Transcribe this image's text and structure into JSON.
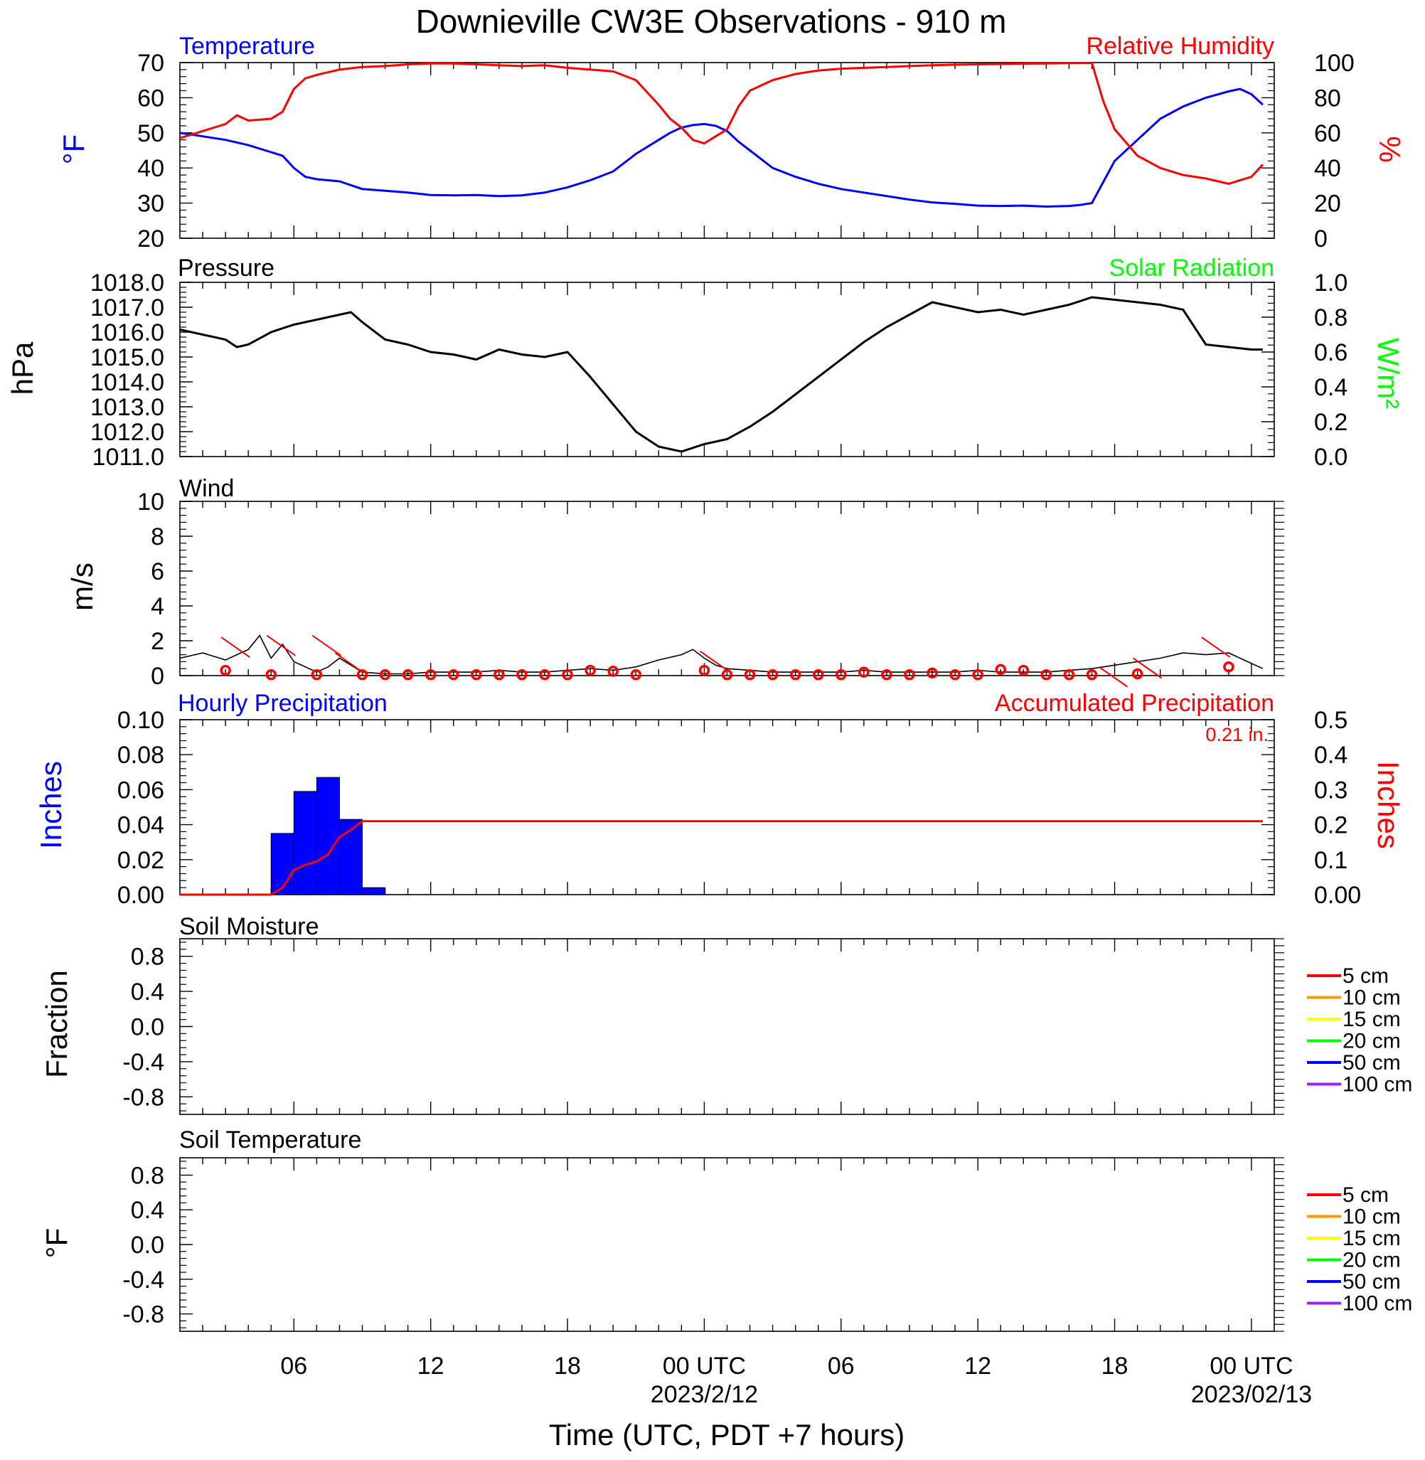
{
  "title": "Downieville CW3E Observations - 910 m",
  "xaxis": {
    "label": "Time (UTC, PDT +7 hours)",
    "ticks": [
      {
        "h": 6,
        "label": "06",
        "date": ""
      },
      {
        "h": 12,
        "label": "12",
        "date": ""
      },
      {
        "h": 18,
        "label": "18",
        "date": ""
      },
      {
        "h": 24,
        "label": "00 UTC",
        "date": "2023/2/12"
      },
      {
        "h": 30,
        "label": "06",
        "date": ""
      },
      {
        "h": 36,
        "label": "12",
        "date": ""
      },
      {
        "h": 42,
        "label": "18",
        "date": ""
      },
      {
        "h": 48,
        "label": "00 UTC",
        "date": "2023/02/13"
      }
    ],
    "range_hours": [
      1,
      49
    ]
  },
  "colors": {
    "temperature": "#0000ff",
    "humidity": "#ff0000",
    "pressure": "#000000",
    "solar": "#00ff00",
    "wind": "#000000",
    "wind_marker": "#ff0000",
    "hourly_precip": "#0000ff",
    "accum_precip": "#ff0000"
  },
  "chart_data": [
    {
      "type": "line",
      "name": "temp_rh",
      "title_left": "Temperature",
      "title_right": "Relative Humidity",
      "ylabel_left": "°F",
      "ylabel_right": "%",
      "ylim_left": [
        20,
        70
      ],
      "ylim_right": [
        0,
        100
      ],
      "yticks_left": [
        20,
        30,
        40,
        50,
        60,
        70
      ],
      "yticks_right": [
        0,
        20,
        40,
        60,
        80,
        100
      ],
      "series": [
        {
          "name": "Temperature",
          "axis": "left",
          "x": [
            1,
            2,
            3,
            4,
            5,
            5.5,
            6,
            6.5,
            7,
            8,
            9,
            10,
            11,
            12,
            13,
            14,
            15,
            16,
            17,
            18,
            19,
            20,
            21,
            22,
            22.5,
            23,
            23.5,
            24,
            24.5,
            25,
            25.5,
            26,
            27,
            28,
            29,
            30,
            31,
            32,
            33,
            34,
            35,
            36,
            37,
            38,
            39,
            40,
            40.5,
            41,
            41.5,
            42,
            43,
            44,
            45,
            46,
            47,
            47.5,
            48,
            48.5
          ],
          "values": [
            50,
            49,
            48,
            46.5,
            44.5,
            43.5,
            40,
            37.5,
            36.8,
            36.2,
            34,
            33.5,
            33,
            32.3,
            32.2,
            32.3,
            32,
            32.2,
            33,
            34.5,
            36.5,
            39,
            44,
            48,
            50,
            51.5,
            52.2,
            52.5,
            52,
            50.5,
            47.5,
            45,
            40,
            37.5,
            35.5,
            34,
            33,
            32,
            31,
            30.2,
            29.8,
            29.3,
            29.2,
            29.3,
            29,
            29.2,
            29.5,
            30,
            36,
            42,
            48,
            54,
            57.5,
            60,
            61.8,
            62.5,
            61,
            58
          ]
        },
        {
          "name": "Relative Humidity",
          "axis": "right",
          "x": [
            1,
            2,
            3,
            3.5,
            4,
            5,
            5.5,
            6,
            6.5,
            7,
            8,
            9,
            10,
            11,
            12,
            13,
            14,
            15,
            16,
            17,
            18,
            19,
            20,
            21,
            21.5,
            22,
            22.5,
            23,
            23.5,
            24,
            24.5,
            25,
            25.5,
            26,
            27,
            28,
            29,
            30,
            31,
            32,
            33,
            34,
            35,
            36,
            37,
            38,
            39,
            40,
            41,
            41.5,
            42,
            43,
            44,
            45,
            46,
            47,
            48,
            48.5
          ],
          "values": [
            57,
            61,
            65,
            70,
            67,
            68,
            72,
            85,
            91,
            93,
            96,
            97.5,
            98,
            99,
            99.5,
            99.5,
            99,
            98.5,
            98,
            98.5,
            97,
            96,
            95,
            90,
            83,
            76,
            68,
            63,
            56,
            54,
            58,
            62,
            75,
            84,
            90,
            93.5,
            95.5,
            96.5,
            97,
            97.5,
            98,
            98.5,
            98.8,
            99,
            99.2,
            99.4,
            99.5,
            99.7,
            99.8,
            78,
            62,
            47,
            40,
            36,
            34,
            31,
            35,
            42
          ]
        }
      ]
    },
    {
      "type": "line",
      "name": "pressure",
      "title_left": "Pressure",
      "title_right": "Solar Radiation",
      "ylabel_left": "hPa",
      "ylabel_right": "W/m²",
      "ylim_left": [
        1011,
        1018
      ],
      "ylim_right": [
        0,
        1
      ],
      "yticks_left": [
        "1011.0",
        "1012.0",
        "1013.0",
        "1014.0",
        "1015.0",
        "1016.0",
        "1017.0",
        "1018.0"
      ],
      "yticks_right": [
        "0.0",
        "0.2",
        "0.4",
        "0.6",
        "0.8",
        "1.0"
      ],
      "series": [
        {
          "name": "Pressure",
          "axis": "left",
          "x": [
            1,
            2,
            3,
            3.5,
            4,
            5,
            6,
            7,
            8,
            8.5,
            9,
            10,
            11,
            12,
            13,
            14,
            15,
            16,
            17,
            18,
            19,
            20,
            21,
            22,
            23,
            24,
            25,
            26,
            27,
            28,
            29,
            30,
            31,
            32,
            33,
            34,
            35,
            36,
            37,
            38,
            39,
            40,
            41,
            42,
            43,
            44,
            45,
            46,
            47,
            48,
            48.5
          ],
          "values": [
            1016.1,
            1015.9,
            1015.7,
            1015.4,
            1015.5,
            1016.0,
            1016.3,
            1016.5,
            1016.7,
            1016.8,
            1016.4,
            1015.7,
            1015.5,
            1015.2,
            1015.1,
            1014.9,
            1015.3,
            1015.1,
            1015.0,
            1015.2,
            1014.2,
            1013.1,
            1012.0,
            1011.4,
            1011.2,
            1011.5,
            1011.7,
            1012.2,
            1012.8,
            1013.5,
            1014.2,
            1014.9,
            1015.6,
            1016.2,
            1016.7,
            1017.2,
            1017.0,
            1016.8,
            1016.9,
            1016.7,
            1016.9,
            1017.1,
            1017.4,
            1017.3,
            1017.2,
            1017.1,
            1016.9,
            1015.5,
            1015.4,
            1015.3,
            1015.3
          ]
        }
      ]
    },
    {
      "type": "line",
      "name": "wind",
      "title_left": "Wind",
      "ylabel_left": "m/s",
      "ylim_left": [
        0,
        10
      ],
      "yticks_left": [
        0,
        2,
        4,
        6,
        8,
        10
      ],
      "series": [
        {
          "name": "Wind",
          "axis": "left",
          "x": [
            1,
            2,
            3,
            4,
            4.5,
            5,
            5.5,
            6,
            7,
            7.5,
            8,
            9,
            10,
            11,
            12,
            13,
            14,
            15,
            16,
            17,
            18,
            19,
            20,
            21,
            22,
            23,
            23.5,
            24,
            24.5,
            25,
            26,
            27,
            28,
            29,
            30,
            31,
            32,
            33,
            34,
            35,
            36,
            37,
            38,
            39,
            40,
            41,
            42,
            43,
            44,
            45,
            46,
            47,
            48,
            48.5
          ],
          "values": [
            1.0,
            1.3,
            0.9,
            1.5,
            2.3,
            1.0,
            1.8,
            0.8,
            0.2,
            0.5,
            1.0,
            0.2,
            0.1,
            0.1,
            0.2,
            0.2,
            0.2,
            0.3,
            0.2,
            0.2,
            0.3,
            0.4,
            0.3,
            0.5,
            0.9,
            1.2,
            1.5,
            1.0,
            0.6,
            0.4,
            0.3,
            0.2,
            0.2,
            0.2,
            0.2,
            0.3,
            0.2,
            0.2,
            0.2,
            0.2,
            0.3,
            0.2,
            0.2,
            0.2,
            0.3,
            0.4,
            0.6,
            0.8,
            1.0,
            1.3,
            1.2,
            1.3,
            0.7,
            0.4
          ]
        }
      ],
      "markers": {
        "x": [
          3,
          5,
          7,
          9,
          10,
          11,
          12,
          13,
          14,
          15,
          16,
          17,
          18,
          19,
          20,
          21,
          24,
          25,
          26,
          27,
          28,
          29,
          30,
          31,
          32,
          33,
          34,
          35,
          36,
          37,
          38,
          39,
          40,
          41,
          43,
          47
        ],
        "values": [
          0.3,
          0.05,
          0.05,
          0.05,
          0.05,
          0.05,
          0.05,
          0.05,
          0.05,
          0.05,
          0.05,
          0.05,
          0.05,
          0.3,
          0.25,
          0.05,
          0.3,
          0.05,
          0.05,
          0.05,
          0.05,
          0.05,
          0.05,
          0.2,
          0.05,
          0.05,
          0.15,
          0.05,
          0.05,
          0.35,
          0.3,
          0.05,
          0.05,
          0.05,
          0.1,
          0.5
        ]
      },
      "barbs": {
        "x": [
          3,
          5,
          7,
          8,
          24,
          41.5,
          43,
          46
        ],
        "values": [
          2.2,
          2.3,
          2.3,
          1.3,
          1.4,
          0.5,
          1.0,
          2.2
        ]
      }
    },
    {
      "type": "bar",
      "name": "precip",
      "title_left": "Hourly Precipitation",
      "title_right": "Accumulated Precipitation",
      "annotation": "0.21 in.",
      "ylabel_left": "Inches",
      "ylabel_right": "Inches",
      "ylim_left": [
        0,
        0.1
      ],
      "ylim_right": [
        0,
        0.5
      ],
      "yticks_left": [
        "0.00",
        "0.02",
        "0.04",
        "0.06",
        "0.08",
        "0.10"
      ],
      "yticks_right": [
        "0.00",
        "0.1",
        "0.2",
        "0.3",
        "0.4",
        "0.5"
      ],
      "series": [
        {
          "name": "Hourly Precipitation",
          "axis": "left",
          "x": [
            5,
            6,
            7,
            8,
            9
          ],
          "values": [
            0.035,
            0.059,
            0.067,
            0.043,
            0.004
          ]
        },
        {
          "name": "Accumulated Precipitation",
          "axis": "right",
          "x": [
            1,
            5,
            5.5,
            6,
            6.5,
            7,
            7.5,
            8,
            8.5,
            9,
            10,
            48.5
          ],
          "values": [
            0,
            0,
            0.02,
            0.07,
            0.085,
            0.095,
            0.115,
            0.165,
            0.185,
            0.21,
            0.21,
            0.21
          ]
        }
      ]
    },
    {
      "type": "line",
      "name": "soil_moisture",
      "title_left": "Soil Moisture",
      "ylabel_left": "Fraction",
      "ylim_left": [
        -1,
        1
      ],
      "yticks_left": [
        "-0.8",
        "-0.4",
        "0.0",
        "0.4",
        "0.8"
      ],
      "legend": [
        {
          "label": "5 cm",
          "color": "#ff0000"
        },
        {
          "label": "10 cm",
          "color": "#ff9900"
        },
        {
          "label": "15 cm",
          "color": "#ffff00"
        },
        {
          "label": "20 cm",
          "color": "#00ff00"
        },
        {
          "label": "50 cm",
          "color": "#0000ff"
        },
        {
          "label": "100 cm",
          "color": "#a020f0"
        }
      ],
      "series": []
    },
    {
      "type": "line",
      "name": "soil_temperature",
      "title_left": "Soil Temperature",
      "ylabel_left": "°F",
      "ylim_left": [
        -1,
        1
      ],
      "yticks_left": [
        "-0.8",
        "-0.4",
        "0.0",
        "0.4",
        "0.8"
      ],
      "legend": [
        {
          "label": "5 cm",
          "color": "#ff0000"
        },
        {
          "label": "10 cm",
          "color": "#ff9900"
        },
        {
          "label": "15 cm",
          "color": "#ffff00"
        },
        {
          "label": "20 cm",
          "color": "#00ff00"
        },
        {
          "label": "50 cm",
          "color": "#0000ff"
        },
        {
          "label": "100 cm",
          "color": "#a020f0"
        }
      ],
      "series": []
    }
  ]
}
